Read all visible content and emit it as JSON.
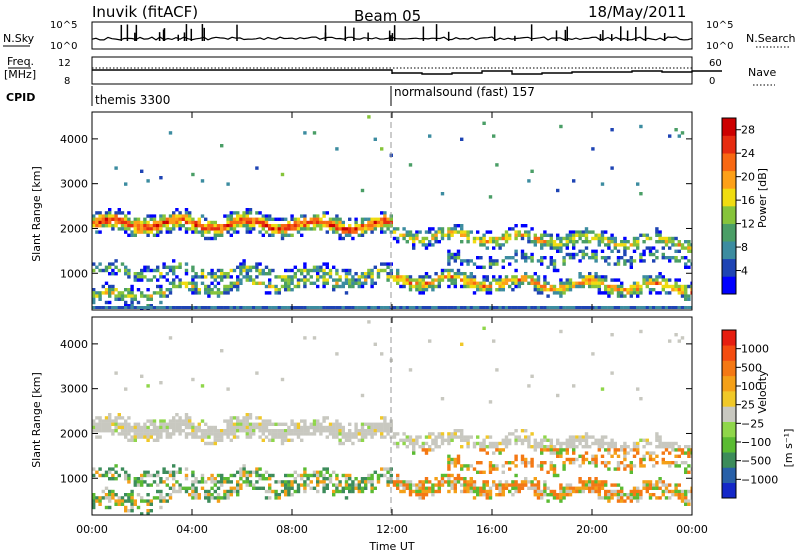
{
  "header": {
    "station": "Inuvik (fitACF)",
    "beam": "Beam 05",
    "date": "18/May/2011"
  },
  "strips": {
    "nsky_label": "N.Sky",
    "nsky_ticks": [
      "10^5",
      "10^0"
    ],
    "nsearch_label": "N.Search",
    "nsearch_ticks": [
      "10^5",
      "10^0"
    ],
    "freq_label": "Freq.",
    "freq_unit": "[MHz]",
    "freq_ticks": [
      "12",
      "8"
    ],
    "nave_label": "Nave",
    "nave_ticks": [
      "60",
      "0"
    ],
    "cpid_label": "CPID",
    "cpid_segments": [
      {
        "name": "themis 3300",
        "start_hour": 0,
        "end_hour": 12
      },
      {
        "name": "normalsound (fast) 157",
        "start_hour": 12,
        "end_hour": 24
      }
    ]
  },
  "chart_data": [
    {
      "type": "heatmap",
      "panel": "power",
      "xlabel": "",
      "ylabel": "Slant Range [km]",
      "xlim_hours": [
        0,
        24
      ],
      "ylim_km": [
        180,
        4600
      ],
      "y_ticks": [
        "1000",
        "2000",
        "3000",
        "4000"
      ],
      "colorbar": {
        "title": "Power [dB]",
        "ticks": [
          "4",
          "8",
          "12",
          "16",
          "20",
          "24",
          "28"
        ],
        "colors": [
          "#0000ff",
          "#1e44b4",
          "#3c8ca0",
          "#4a9e66",
          "#86c43a",
          "#f0dc10",
          "#fda018",
          "#f86812",
          "#e62c10",
          "#cc0000"
        ],
        "range": [
          0,
          30
        ]
      }
    },
    {
      "type": "heatmap",
      "panel": "velocity",
      "xlabel": "Time UT",
      "ylabel": "Slant Range [km]",
      "xlim_hours": [
        0,
        24
      ],
      "ylim_km": [
        180,
        4600
      ],
      "x_ticks": [
        "00:00",
        "04:00",
        "08:00",
        "12:00",
        "16:00",
        "20:00",
        "00:00"
      ],
      "y_ticks": [
        "1000",
        "2000",
        "3000",
        "4000"
      ],
      "colorbar": {
        "title": "Velocity",
        "unit": "[m s⁻¹]",
        "ticks": [
          "1000",
          "500",
          "100",
          "25",
          "−25",
          "−100",
          "−500",
          "−1000"
        ],
        "colors": [
          "#1428c8",
          "#2860a8",
          "#3c8c5a",
          "#5abb32",
          "#8fd64a",
          "#c8c8c0",
          "#f0c828",
          "#f4a018",
          "#f47814",
          "#f44c10",
          "#e61e10"
        ]
      }
    }
  ]
}
